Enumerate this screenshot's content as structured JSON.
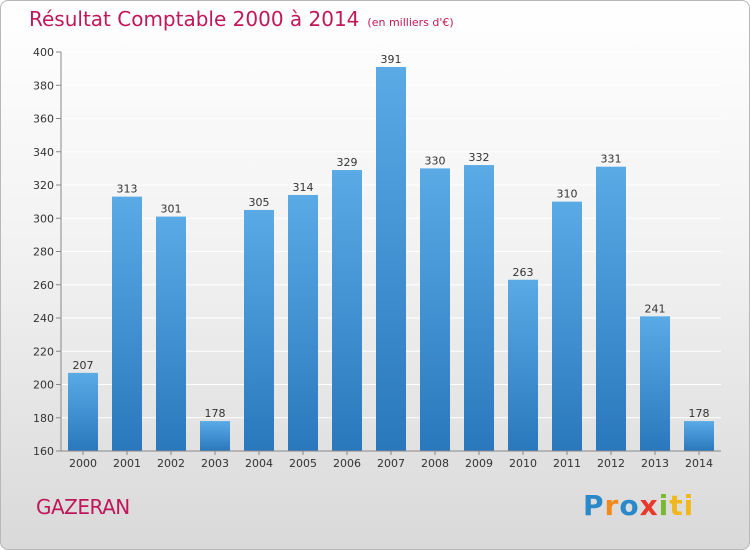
{
  "title": "Résultat Comptable 2000 à 2014",
  "unit": "(en milliers d'€)",
  "commune": "GAZERAN",
  "logo": [
    "P",
    "r",
    "o",
    "x",
    "i",
    "ti"
  ],
  "colors": {
    "title": "#c0175a",
    "bar_light": "#5aaae6",
    "bar_dark": "#2a78bc",
    "grid": "#ffffff",
    "axis": "#888888"
  },
  "chart_data": {
    "type": "bar",
    "title": "Résultat Comptable 2000 à 2014",
    "ylabel": "en milliers d'€",
    "xlabel": "",
    "categories": [
      "2000",
      "2001",
      "2002",
      "2003",
      "2004",
      "2005",
      "2006",
      "2007",
      "2008",
      "2009",
      "2010",
      "2011",
      "2012",
      "2013",
      "2014"
    ],
    "values": [
      207,
      313,
      301,
      178,
      305,
      314,
      329,
      391,
      330,
      332,
      263,
      310,
      331,
      241,
      178
    ],
    "ylim": [
      160,
      400
    ],
    "yticks": [
      160,
      180,
      200,
      220,
      240,
      260,
      280,
      300,
      320,
      340,
      360,
      380,
      400
    ],
    "grid": true
  }
}
